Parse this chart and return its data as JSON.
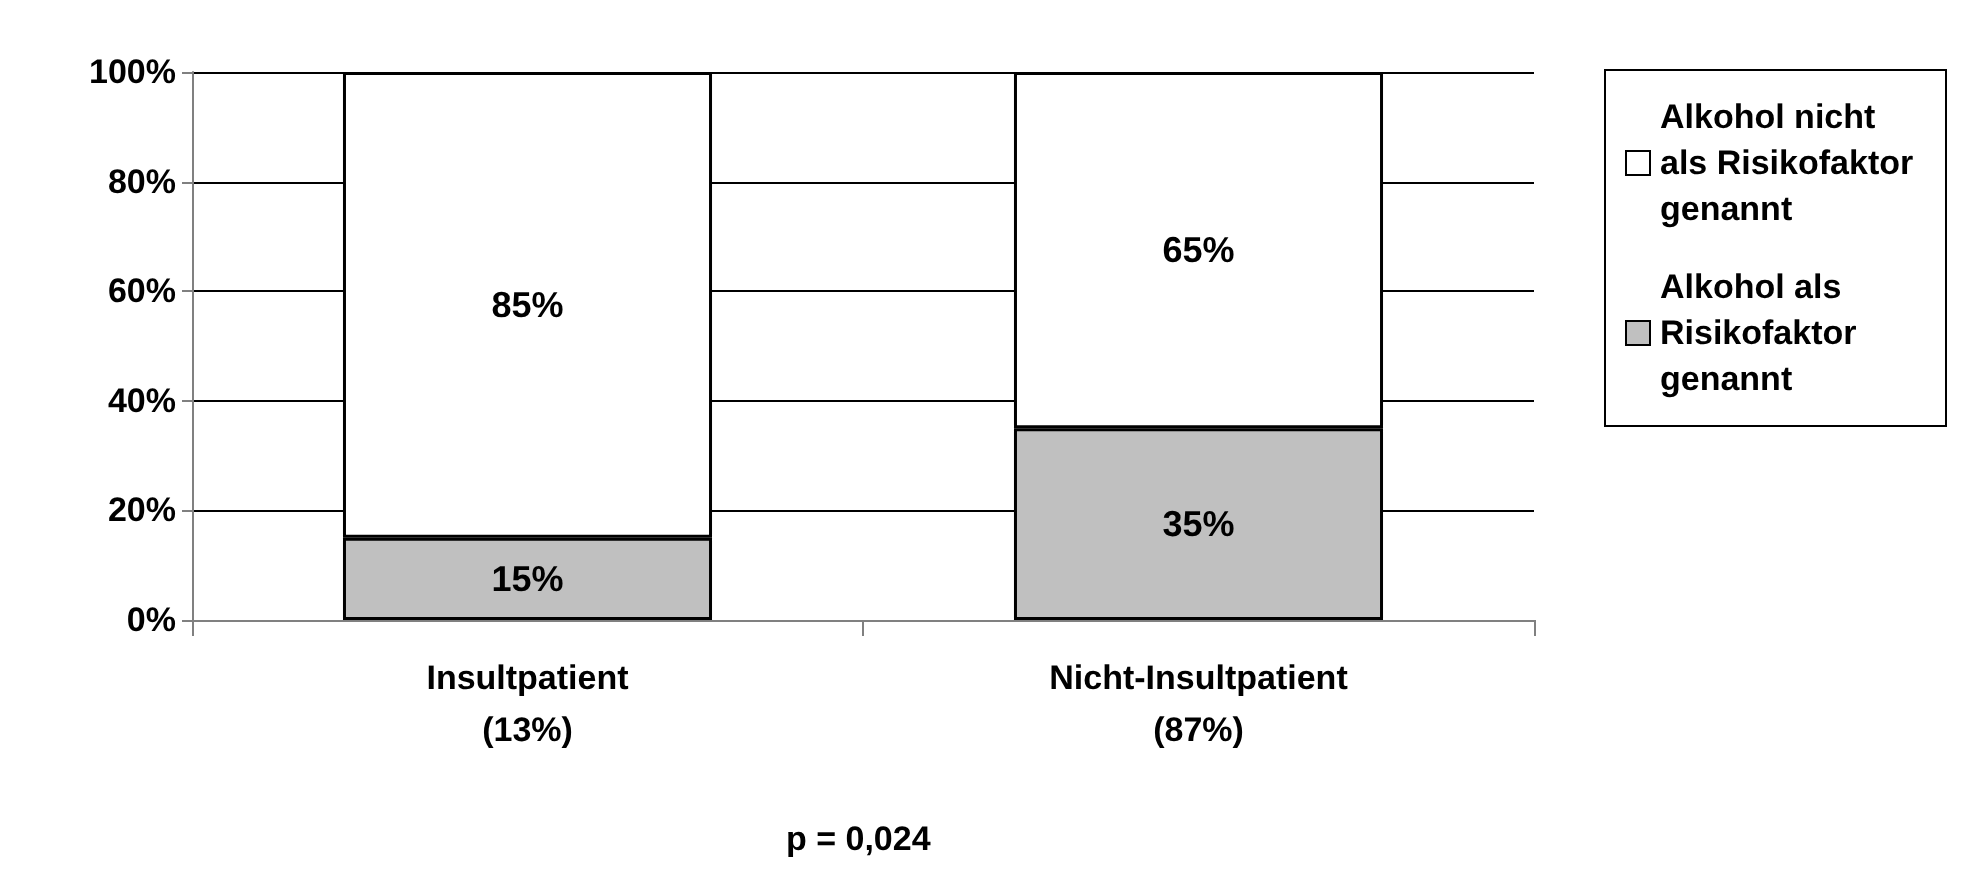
{
  "chart_data": {
    "type": "bar",
    "stacked": true,
    "categories": [
      "Insultpatient\n(13%)",
      "Nicht-Insultpatient\n(87%)"
    ],
    "series": [
      {
        "name": "Alkohol als Risikofaktor genannt",
        "color": "#c0c0c0",
        "values": [
          15,
          35
        ],
        "value_labels": [
          "15%",
          "35%"
        ]
      },
      {
        "name": "Alkohol nicht als Risikofaktor genannt",
        "color": "#ffffff",
        "values": [
          85,
          65
        ],
        "value_labels": [
          "85%",
          "65%"
        ]
      }
    ],
    "ylim": [
      0,
      100
    ],
    "yticks": [
      {
        "value": 0,
        "label": "0%"
      },
      {
        "value": 20,
        "label": "20%"
      },
      {
        "value": 40,
        "label": "40%"
      },
      {
        "value": 60,
        "label": "60%"
      },
      {
        "value": 80,
        "label": "80%"
      },
      {
        "value": 100,
        "label": "100%"
      }
    ],
    "grid": "y",
    "legend": "right",
    "annotations": [
      "p = 0,024"
    ]
  }
}
